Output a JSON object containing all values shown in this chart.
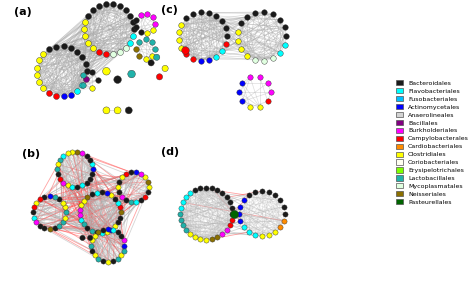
{
  "legend_items": [
    {
      "label": "Bacteroidales",
      "color": "#1a1a1a"
    },
    {
      "label": "Flavobacteriales",
      "color": "#00ffff"
    },
    {
      "label": "Fusobacteriales",
      "color": "#00bfff"
    },
    {
      "label": "Actinomycetales",
      "color": "#0000ff"
    },
    {
      "label": "Anaerolineales",
      "color": "#d3d3d3"
    },
    {
      "label": "Bacillales",
      "color": "#800080"
    },
    {
      "label": "Burkholderiales",
      "color": "#ff00ff"
    },
    {
      "label": "Campylobacterales",
      "color": "#ff0000"
    },
    {
      "label": "Cardiobacteriales",
      "color": "#ff8c00"
    },
    {
      "label": "Clostridiales",
      "color": "#ffff00"
    },
    {
      "label": "Coriobacteriales",
      "color": "#fffff0"
    },
    {
      "label": "Erysipelotrichales",
      "color": "#7fff00"
    },
    {
      "label": "Lactobacillales",
      "color": "#20b2aa"
    },
    {
      "label": "Mycoplasmatales",
      "color": "#e0ffe0"
    },
    {
      "label": "Neisseriales",
      "color": "#8b7000"
    },
    {
      "label": "Pasteurellales",
      "color": "#006400"
    }
  ],
  "node_colors": [
    "#1a1a1a",
    "#00ffff",
    "#00bfff",
    "#0000ff",
    "#d3d3d3",
    "#800080",
    "#ff00ff",
    "#ff0000",
    "#ff8c00",
    "#ffff00",
    "#fffff0",
    "#7fff00",
    "#20b2aa",
    "#e0ffe0",
    "#8b7000",
    "#006400"
  ],
  "background": "#ffffff"
}
